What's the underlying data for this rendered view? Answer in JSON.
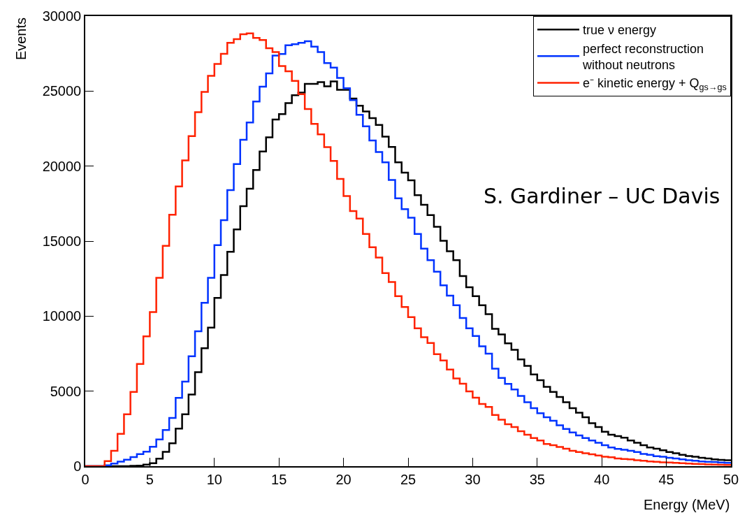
{
  "chart_data": {
    "type": "histogram",
    "xlabel": "Energy (MeV)",
    "ylabel": "Events",
    "annotations": [
      "S. Gardiner – UC Davis"
    ],
    "bins": [
      0,
      0.5,
      1,
      1.5,
      2,
      2.5,
      3,
      3.5,
      4,
      4.5,
      5,
      5.5,
      6,
      6.5,
      7,
      7.5,
      8,
      8.5,
      9,
      9.5,
      10,
      10.5,
      11,
      11.5,
      12,
      12.5,
      13,
      13.5,
      14,
      14.5,
      15,
      15.5,
      16,
      16.5,
      17,
      17.5,
      18,
      18.5,
      19,
      19.5,
      20,
      20.5,
      21,
      21.5,
      22,
      22.5,
      23,
      23.5,
      24,
      24.5,
      25,
      25.5,
      26,
      26.5,
      27,
      27.5,
      28,
      28.5,
      29,
      29.5,
      30,
      30.5,
      31,
      31.5,
      32,
      32.5,
      33,
      33.5,
      34,
      34.5,
      35,
      35.5,
      36,
      36.5,
      37,
      37.5,
      38,
      38.5,
      39,
      39.5,
      40,
      40.5,
      41,
      41.5,
      42,
      42.5,
      43,
      43.5,
      44,
      44.5,
      45,
      45.5,
      46,
      46.5,
      47,
      47.5,
      48,
      48.5,
      49,
      49.5,
      50
    ],
    "series": [
      {
        "name": "true ν energy",
        "color": "#000000",
        "values": [
          0,
          0,
          0,
          0,
          0,
          0,
          0,
          20,
          40,
          100,
          200,
          500,
          950,
          1530,
          2500,
          3460,
          4780,
          6270,
          7860,
          9240,
          11220,
          12740,
          14290,
          15780,
          17330,
          18490,
          19740,
          20970,
          21920,
          23110,
          23470,
          24200,
          24730,
          24900,
          25480,
          25480,
          25600,
          25320,
          25640,
          25090,
          25090,
          24500,
          24020,
          23640,
          23200,
          22740,
          21960,
          21280,
          20250,
          19560,
          19050,
          18060,
          17420,
          16730,
          15960,
          15020,
          14330,
          13730,
          12670,
          11930,
          11330,
          10730,
          10130,
          9150,
          8780,
          8190,
          7760,
          7110,
          6680,
          6110,
          5730,
          5290,
          4950,
          4610,
          4260,
          3870,
          3560,
          3260,
          2870,
          2610,
          2300,
          2100,
          2000,
          1900,
          1710,
          1560,
          1400,
          1250,
          1170,
          1060,
          940,
          860,
          760,
          680,
          630,
          560,
          510,
          450,
          420,
          400
        ]
      },
      {
        "name": "perfect reconstruction\nwithout neutrons",
        "color": "#0033ff",
        "values": [
          0,
          0,
          0,
          60,
          180,
          300,
          430,
          600,
          800,
          970,
          1290,
          1780,
          2410,
          3210,
          4550,
          5640,
          7320,
          8990,
          10890,
          12550,
          14730,
          16400,
          18400,
          20140,
          21760,
          22910,
          24300,
          25290,
          26180,
          27370,
          27470,
          28060,
          28120,
          28220,
          28320,
          27960,
          27600,
          26870,
          26570,
          25880,
          25190,
          24400,
          23420,
          22650,
          21710,
          20940,
          20250,
          19080,
          17850,
          17130,
          16560,
          15480,
          14500,
          13730,
          12960,
          12050,
          11370,
          10730,
          9870,
          9190,
          8680,
          7990,
          7500,
          6500,
          5880,
          5490,
          5110,
          4680,
          4260,
          3870,
          3530,
          3260,
          3030,
          2720,
          2480,
          2250,
          2050,
          1870,
          1710,
          1560,
          1400,
          1250,
          1150,
          1100,
          1020,
          940,
          820,
          760,
          660,
          630,
          560,
          510,
          450,
          400,
          360,
          320,
          290,
          280,
          250,
          220
        ]
      },
      {
        "name": "e⁻ kinetic energy + Q$_{gs→gs}$",
        "color": "#ff2200",
        "values": [
          0,
          0,
          0,
          340,
          1030,
          2160,
          3460,
          4950,
          6810,
          8650,
          10270,
          12560,
          14680,
          16760,
          18640,
          20380,
          22000,
          23590,
          24950,
          26020,
          26810,
          27480,
          28220,
          28460,
          28790,
          28850,
          28550,
          28400,
          27860,
          27600,
          26670,
          26320,
          25680,
          24790,
          23800,
          22810,
          22120,
          21270,
          20340,
          19150,
          18000,
          17000,
          16500,
          15480,
          14590,
          13900,
          12870,
          12270,
          11330,
          10610,
          9930,
          9190,
          8590,
          8210,
          7470,
          7050,
          6440,
          5850,
          5500,
          4990,
          4560,
          4150,
          3950,
          3410,
          3100,
          2790,
          2610,
          2330,
          2100,
          1870,
          1710,
          1480,
          1400,
          1280,
          1170,
          1020,
          940,
          860,
          790,
          710,
          630,
          590,
          510,
          480,
          450,
          400,
          360,
          320,
          290,
          260,
          250,
          220,
          200,
          170,
          150,
          140,
          120,
          110,
          90,
          80
        ]
      }
    ],
    "xlim": [
      0,
      50
    ],
    "xticks": [
      0,
      5,
      10,
      15,
      20,
      25,
      30,
      35,
      40,
      45,
      50
    ],
    "ylim": [
      0,
      30000
    ],
    "yticks": [
      0,
      5000,
      10000,
      15000,
      20000,
      25000,
      30000
    ],
    "legend": "top right"
  }
}
